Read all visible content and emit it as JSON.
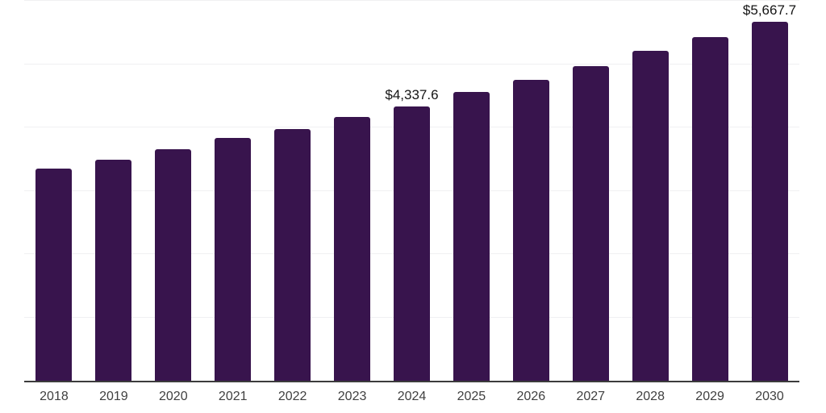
{
  "chart_data": {
    "type": "bar",
    "title": "",
    "xlabel": "",
    "ylabel": "",
    "categories": [
      "2018",
      "2019",
      "2020",
      "2021",
      "2022",
      "2023",
      "2024",
      "2025",
      "2026",
      "2027",
      "2028",
      "2029",
      "2030"
    ],
    "values": [
      3345,
      3485,
      3650,
      3830,
      3980,
      4165,
      4337.6,
      4555,
      4755,
      4965,
      5210,
      5430,
      5667.7
    ],
    "annotations": [
      {
        "index": 6,
        "category": "2024",
        "text": "$4,337.6"
      },
      {
        "index": 12,
        "category": "2030",
        "text": "$5,667.7"
      }
    ],
    "ylim": [
      0,
      6000
    ],
    "gridline_interval": 1000,
    "grid": true,
    "legend": "none",
    "y_axis_tick_labels": "none",
    "bar_color": "#38144d",
    "axis_line_color": "#3c3c3c",
    "gridline_color": "#f0f0f2",
    "tick_label_color": "#404040",
    "value_label_color": "#141414"
  }
}
